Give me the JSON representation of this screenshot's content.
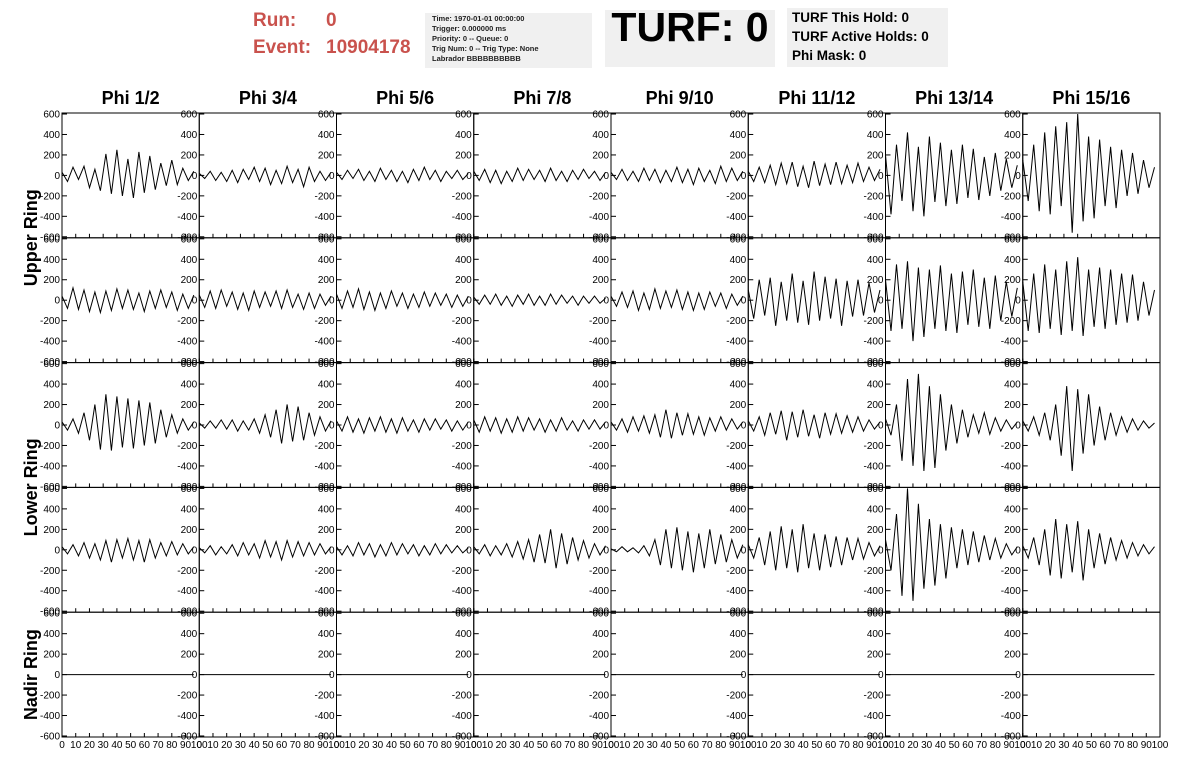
{
  "header": {
    "run_label": "Run:",
    "run": "0",
    "event_label": "Event:",
    "event": "10904178",
    "info": [
      "Time: 1970-01-01 00:00:00",
      "Trigger: 0.000000 ms",
      "Priority: 0 -- Queue: 0",
      "Trig Num: 0 -- Trig Type: None",
      "Labrador BBBBBBBBBB"
    ],
    "turf": "TURF: 0",
    "turf_info": [
      "TURF This Hold: 0",
      "TURF Active Holds: 0",
      "Phi Mask: 0"
    ]
  },
  "waveforms": {
    "columns": [
      "Phi 1/2",
      "Phi 3/4",
      "Phi 5/6",
      "Phi 7/8",
      "Phi 9/10",
      "Phi 11/12",
      "Phi 13/14",
      "Phi 15/16"
    ],
    "rows": [
      "Upper Ring",
      "Lower Ring",
      "Nadir Ring"
    ],
    "ylim": [
      -610,
      610
    ],
    "yticks": [
      600,
      400,
      200,
      0,
      -200,
      -400,
      -600
    ],
    "xlim": [
      0,
      100
    ],
    "xticks": [
      0,
      10,
      20,
      30,
      40,
      50,
      60,
      70,
      80,
      90,
      100
    ],
    "x": [
      0,
      4,
      8,
      12,
      16,
      20,
      24,
      28,
      32,
      36,
      40,
      44,
      48,
      52,
      56,
      60,
      64,
      68,
      72,
      76,
      80,
      84,
      88,
      92,
      96
    ],
    "traces": [
      [
        [
          30,
          -60,
          80,
          -40,
          90,
          -120,
          60,
          -150,
          210,
          -180,
          250,
          -200,
          160,
          -220,
          230,
          -170,
          190,
          -140,
          120,
          -100,
          150,
          -90,
          70,
          -50,
          40
        ],
        [
          20,
          -30,
          40,
          -50,
          30,
          -60,
          50,
          -70,
          60,
          -40,
          80,
          -60,
          70,
          -90,
          50,
          -80,
          90,
          -70,
          60,
          -110,
          80,
          -60,
          40,
          -50,
          30
        ],
        [
          30,
          -40,
          50,
          -30,
          60,
          -50,
          40,
          -60,
          70,
          -40,
          50,
          -60,
          40,
          -70,
          60,
          -50,
          80,
          -40,
          50,
          -60,
          40,
          -30,
          50,
          -40,
          20
        ],
        [
          40,
          -50,
          60,
          -70,
          50,
          -80,
          40,
          -60,
          70,
          -50,
          60,
          -40,
          50,
          -60,
          70,
          -50,
          40,
          -60,
          50,
          -40,
          60,
          -30,
          40,
          -50,
          30
        ],
        [
          30,
          -40,
          60,
          -50,
          40,
          -60,
          70,
          -50,
          60,
          -70,
          50,
          -60,
          80,
          -70,
          60,
          -90,
          70,
          -60,
          50,
          -80,
          90,
          -60,
          70,
          -50,
          40
        ],
        [
          40,
          -60,
          80,
          -70,
          100,
          -90,
          120,
          -80,
          130,
          -110,
          90,
          -120,
          140,
          -100,
          110,
          -90,
          130,
          -80,
          100,
          -70,
          120,
          -60,
          80,
          -50,
          60
        ],
        [
          200,
          -380,
          300,
          -250,
          420,
          -350,
          280,
          -400,
          380,
          -260,
          320,
          -300,
          250,
          -280,
          300,
          -220,
          260,
          -240,
          180,
          -200,
          220,
          -150,
          160,
          -120,
          100
        ],
        [
          150,
          -250,
          300,
          -350,
          420,
          -380,
          480,
          -300,
          520,
          -560,
          600,
          -450,
          380,
          -420,
          350,
          -300,
          280,
          -320,
          250,
          -200,
          220,
          -180,
          150,
          -120,
          80
        ]
      ],
      [
        [
          40,
          -80,
          120,
          -90,
          100,
          -110,
          80,
          -120,
          90,
          -100,
          110,
          -80,
          100,
          -90,
          70,
          -110,
          90,
          -80,
          100,
          -70,
          80,
          -100,
          60,
          -80,
          50
        ],
        [
          50,
          -70,
          90,
          -80,
          100,
          -60,
          80,
          -90,
          70,
          -100,
          90,
          -70,
          80,
          -60,
          90,
          -80,
          100,
          -70,
          60,
          -90,
          70,
          -80,
          60,
          -50,
          40
        ],
        [
          60,
          -80,
          90,
          -70,
          110,
          -90,
          80,
          -100,
          70,
          -80,
          90,
          -60,
          70,
          -80,
          60,
          -70,
          80,
          -60,
          70,
          -50,
          60,
          -70,
          50,
          -60,
          40
        ],
        [
          30,
          -40,
          50,
          -40,
          60,
          -50,
          40,
          -60,
          50,
          -40,
          60,
          -50,
          40,
          -50,
          60,
          -40,
          50,
          -30,
          40,
          -50,
          40,
          -30,
          40,
          -30,
          20
        ],
        [
          40,
          -60,
          80,
          -70,
          90,
          -100,
          70,
          -90,
          110,
          -80,
          90,
          -70,
          100,
          -90,
          80,
          -100,
          70,
          -90,
          80,
          -60,
          70,
          -80,
          60,
          -50,
          40
        ],
        [
          100,
          -180,
          200,
          -150,
          220,
          -250,
          180,
          -200,
          260,
          -220,
          190,
          -240,
          280,
          -200,
          230,
          -180,
          210,
          -250,
          190,
          -160,
          200,
          -150,
          170,
          -120,
          100
        ],
        [
          200,
          -300,
          350,
          -280,
          380,
          -400,
          320,
          -360,
          300,
          -280,
          340,
          -300,
          260,
          -320,
          280,
          -240,
          300,
          -260,
          220,
          -280,
          240,
          -200,
          180,
          -160,
          120
        ],
        [
          180,
          -300,
          260,
          -320,
          350,
          -280,
          300,
          -340,
          380,
          -300,
          420,
          -350,
          300,
          -260,
          320,
          -280,
          300,
          -240,
          260,
          -220,
          250,
          -200,
          180,
          -150,
          100
        ]
      ],
      [
        [
          30,
          -50,
          60,
          -80,
          120,
          -150,
          200,
          -240,
          300,
          -250,
          280,
          -220,
          260,
          -230,
          240,
          -200,
          220,
          -180,
          150,
          -120,
          100,
          -80,
          60,
          -50,
          30
        ],
        [
          20,
          -30,
          40,
          -30,
          50,
          -40,
          50,
          -60,
          40,
          -50,
          60,
          -80,
          100,
          -120,
          150,
          -180,
          200,
          -160,
          180,
          -150,
          120,
          -100,
          80,
          -60,
          40
        ],
        [
          40,
          -60,
          80,
          -70,
          60,
          -80,
          70,
          -60,
          80,
          -70,
          60,
          -80,
          70,
          -60,
          50,
          -70,
          60,
          -50,
          60,
          -40,
          50,
          -60,
          40,
          -50,
          30
        ],
        [
          50,
          -70,
          80,
          -60,
          70,
          -80,
          60,
          -70,
          80,
          -60,
          70,
          -50,
          60,
          -70,
          50,
          -60,
          70,
          -50,
          40,
          -60,
          50,
          -40,
          50,
          -40,
          30
        ],
        [
          30,
          -50,
          60,
          -70,
          80,
          -60,
          90,
          -80,
          100,
          -120,
          150,
          -130,
          120,
          -100,
          110,
          -90,
          80,
          -100,
          70,
          -60,
          80,
          -50,
          60,
          -40,
          30
        ],
        [
          40,
          -60,
          80,
          -100,
          120,
          -90,
          140,
          -150,
          130,
          -120,
          150,
          -110,
          100,
          -130,
          120,
          -90,
          110,
          -80,
          90,
          -70,
          80,
          -60,
          50,
          -40,
          30
        ],
        [
          60,
          -100,
          200,
          -350,
          450,
          -400,
          500,
          -450,
          380,
          -420,
          300,
          -250,
          200,
          -180,
          150,
          -120,
          100,
          -80,
          120,
          -90,
          70,
          -60,
          50,
          -40,
          30
        ],
        [
          40,
          -60,
          80,
          -100,
          120,
          -150,
          200,
          -300,
          380,
          -450,
          350,
          -280,
          300,
          -200,
          180,
          -150,
          120,
          -100,
          80,
          -70,
          60,
          -50,
          40,
          -30,
          20
        ]
      ],
      [
        [
          30,
          -40,
          50,
          -60,
          70,
          -80,
          60,
          -100,
          90,
          -120,
          100,
          -80,
          110,
          -100,
          90,
          -120,
          100,
          -80,
          70,
          -60,
          80,
          -50,
          60,
          -40,
          30
        ],
        [
          20,
          -30,
          40,
          -50,
          30,
          -40,
          50,
          -60,
          70,
          -50,
          60,
          -80,
          90,
          -70,
          80,
          -100,
          90,
          -70,
          80,
          -60,
          70,
          -50,
          60,
          -40,
          30
        ],
        [
          30,
          -50,
          40,
          -60,
          70,
          -50,
          60,
          -70,
          50,
          -60,
          70,
          -50,
          60,
          -40,
          50,
          -60,
          40,
          -50,
          60,
          -40,
          50,
          -30,
          40,
          -30,
          20
        ],
        [
          30,
          -40,
          50,
          -60,
          40,
          -50,
          60,
          -70,
          80,
          -90,
          100,
          -120,
          150,
          -130,
          200,
          -180,
          160,
          -140,
          120,
          -100,
          90,
          -80,
          60,
          -50,
          40
        ],
        [
          10,
          -20,
          30,
          -20,
          20,
          -30,
          40,
          -60,
          100,
          -150,
          200,
          -180,
          220,
          -200,
          180,
          -220,
          160,
          -180,
          200,
          -140,
          150,
          -120,
          100,
          -80,
          50
        ],
        [
          50,
          -80,
          120,
          -150,
          180,
          -200,
          230,
          -180,
          200,
          -220,
          250,
          -180,
          160,
          -200,
          150,
          -170,
          130,
          -150,
          120,
          -100,
          110,
          -90,
          70,
          -60,
          40
        ],
        [
          100,
          -200,
          350,
          -450,
          600,
          -500,
          450,
          -380,
          300,
          -350,
          250,
          -280,
          220,
          -180,
          200,
          -150,
          180,
          -120,
          140,
          -100,
          110,
          -80,
          60,
          -50,
          30
        ],
        [
          40,
          -80,
          120,
          -150,
          200,
          -250,
          300,
          -280,
          250,
          -220,
          280,
          -300,
          200,
          -180,
          160,
          -140,
          120,
          -100,
          90,
          -80,
          70,
          -60,
          50,
          -40,
          30
        ]
      ],
      [
        [
          0,
          0,
          0,
          0,
          0,
          0,
          0,
          0,
          0,
          0,
          0,
          0,
          0,
          0,
          0,
          0,
          0,
          0,
          0,
          0,
          0,
          0,
          0,
          0,
          0
        ],
        [
          0,
          0,
          0,
          0,
          0,
          0,
          0,
          0,
          0,
          0,
          0,
          0,
          0,
          0,
          0,
          0,
          0,
          0,
          0,
          0,
          0,
          0,
          0,
          0,
          0
        ],
        [
          0,
          0,
          0,
          0,
          0,
          0,
          0,
          0,
          0,
          0,
          0,
          0,
          0,
          0,
          0,
          0,
          0,
          0,
          0,
          0,
          0,
          0,
          0,
          0,
          0
        ],
        [
          0,
          0,
          0,
          0,
          0,
          0,
          0,
          0,
          0,
          0,
          0,
          0,
          0,
          0,
          0,
          0,
          0,
          0,
          0,
          0,
          0,
          0,
          0,
          0,
          0
        ],
        [
          0,
          0,
          0,
          0,
          0,
          0,
          0,
          0,
          0,
          0,
          0,
          0,
          0,
          0,
          0,
          0,
          0,
          0,
          0,
          0,
          0,
          0,
          0,
          0,
          0
        ],
        [
          0,
          0,
          0,
          0,
          0,
          0,
          0,
          0,
          0,
          0,
          0,
          0,
          0,
          0,
          0,
          0,
          0,
          0,
          0,
          0,
          0,
          0,
          0,
          0,
          0
        ],
        [
          0,
          0,
          0,
          0,
          0,
          0,
          0,
          0,
          0,
          0,
          0,
          0,
          0,
          0,
          0,
          0,
          0,
          0,
          0,
          0,
          0,
          0,
          0,
          0,
          0
        ],
        [
          0,
          0,
          0,
          0,
          0,
          0,
          0,
          0,
          0,
          0,
          0,
          0,
          0,
          0,
          0,
          0,
          0,
          0,
          0,
          0,
          0,
          0,
          0,
          0,
          0
        ]
      ]
    ]
  }
}
